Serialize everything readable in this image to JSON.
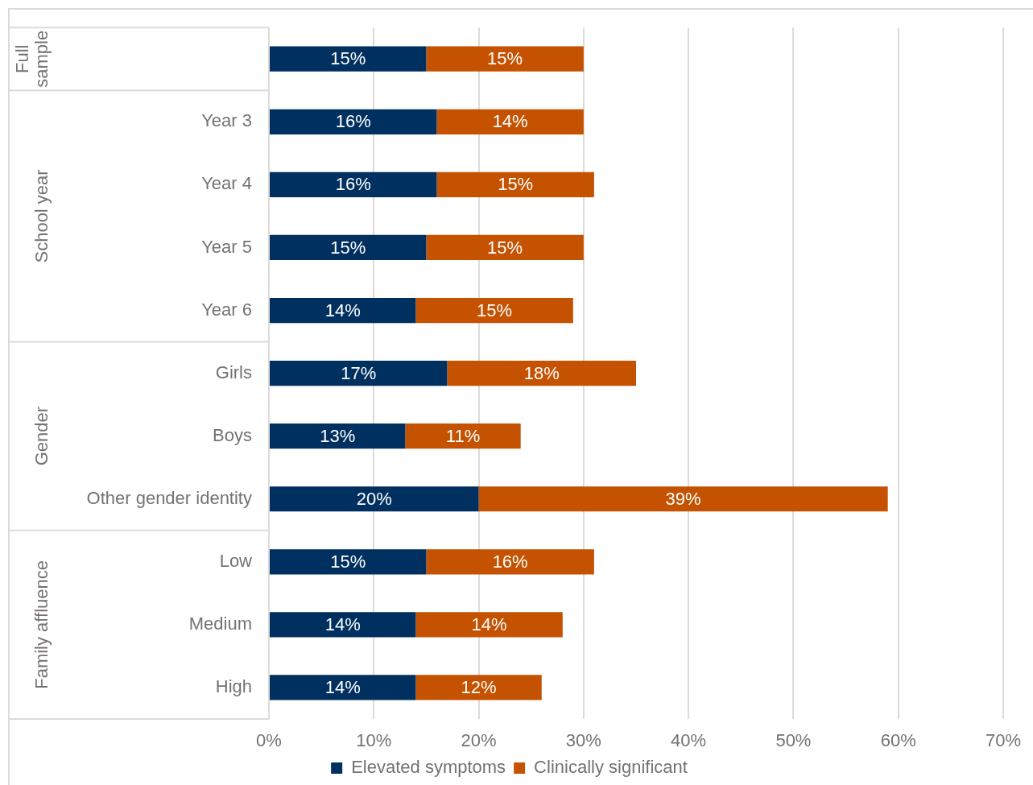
{
  "chart_data": {
    "type": "bar",
    "orientation": "horizontal",
    "stacked": true,
    "categories": [
      null,
      "Year 3",
      "Year 4",
      "Year 5",
      "Year 6",
      "Girls",
      "Boys",
      "Other gender identity",
      "Low",
      "Medium",
      "High"
    ],
    "series": [
      {
        "name": "Elevated symptoms",
        "color": "#003060",
        "values": [
          15,
          16,
          16,
          15,
          14,
          17,
          13,
          20,
          15,
          14,
          14
        ],
        "value_labels": [
          "15%",
          "16%",
          "16%",
          "15%",
          "14%",
          "17%",
          "13%",
          "20%",
          "15%",
          "14%",
          "14%"
        ]
      },
      {
        "name": "Clinically significant",
        "color": "#c45200",
        "values": [
          15,
          14,
          15,
          15,
          15,
          18,
          11,
          39,
          16,
          14,
          12
        ],
        "value_labels": [
          "15%",
          "14%",
          "15%",
          "15%",
          "15%",
          "18%",
          "11%",
          "39%",
          "16%",
          "14%",
          "12%"
        ]
      }
    ],
    "xlim": [
      0,
      70
    ],
    "xticks": [
      {
        "value": 0,
        "label": "0%"
      },
      {
        "value": 10,
        "label": "10%"
      },
      {
        "value": 20,
        "label": "20%"
      },
      {
        "value": 30,
        "label": "30%"
      },
      {
        "value": 40,
        "label": "40%"
      },
      {
        "value": 50,
        "label": "50%"
      },
      {
        "value": 60,
        "label": "60%"
      },
      {
        "value": 70,
        "label": "70%"
      }
    ],
    "grid": "x",
    "legend": "bottom",
    "annotations": [
      "Full sample",
      "School year",
      "Gender",
      "Family affluence"
    ]
  }
}
